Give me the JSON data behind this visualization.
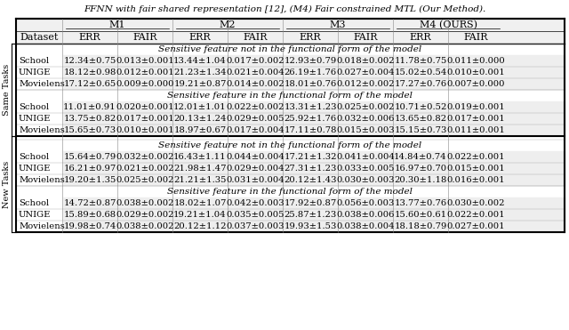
{
  "title": "FFNN with fair shared representation [12], (M4) Fair constrained MTL (Our Method).",
  "col_headers_level1": [
    "",
    "M1",
    "",
    "M2",
    "",
    "M3",
    "",
    "M4 (OURS)",
    ""
  ],
  "col_headers_level2": [
    "Dataset",
    "ERR",
    "FAIR",
    "ERR",
    "FAIR",
    "ERR",
    "FAIR",
    "ERR",
    "FAIR"
  ],
  "row_group1_label": "Same Tasks",
  "row_group1_section1_header": "Sensitive feature not in the functional form of the model",
  "row_group1_section1": [
    [
      "School",
      "12.34±0.75",
      "0.013±0.001",
      "13.44±1.04",
      "0.017±0.002",
      "12.93±0.79",
      "0.018±0.002",
      "11.78±0.75",
      "0.011±0.000"
    ],
    [
      "UNIGE",
      "18.12±0.98",
      "0.012±0.001",
      "21.23±1.34",
      "0.021±0.004",
      "26.19±1.76",
      "0.027±0.004",
      "15.02±0.54",
      "0.010±0.001"
    ],
    [
      "Movielens",
      "17.12±0.65",
      "0.009±0.000",
      "19.21±0.87",
      "0.014±0.002",
      "18.01±0.76",
      "0.012±0.002",
      "17.27±0.76",
      "0.007±0.000"
    ]
  ],
  "row_group1_section2_header": "Sensitive feature in the functional form of the model",
  "row_group1_section2": [
    [
      "School",
      "11.01±0.91",
      "0.020±0.001",
      "12.01±1.01",
      "0.022±0.002",
      "13.31±1.23",
      "0.025±0.002",
      "10.71±0.52",
      "0.019±0.001"
    ],
    [
      "UNIGE",
      "13.75±0.82",
      "0.017±0.001",
      "20.13±1.24",
      "0.029±0.005",
      "25.92±1.76",
      "0.032±0.006",
      "13.65±0.82",
      "0.017±0.001"
    ],
    [
      "Movielens",
      "15.65±0.73",
      "0.010±0.001",
      "18.97±0.67",
      "0.017±0.004",
      "17.11±0.78",
      "0.015±0.003",
      "15.15±0.73",
      "0.011±0.001"
    ]
  ],
  "row_group2_label": "New Tasks",
  "row_group2_section1_header": "Sensitive feature not in the functional form of the model",
  "row_group2_section1": [
    [
      "School",
      "15.64±0.79",
      "0.032±0.002",
      "16.43±1.11",
      "0.044±0.004",
      "17.21±1.32",
      "0.041±0.004",
      "14.84±0.74",
      "0.022±0.001"
    ],
    [
      "UNIGE",
      "16.21±0.97",
      "0.021±0.002",
      "21.98±1.47",
      "0.029±0.004",
      "27.31±1.23",
      "0.033±0.005",
      "16.97±0.70",
      "0.015±0.001"
    ],
    [
      "Movielens",
      "19.20±1.35",
      "0.025±0.002",
      "21.21±1.35",
      "0.031±0.004",
      "20.12±1.43",
      "0.030±0.003",
      "20.30±1.18",
      "0.016±0.001"
    ]
  ],
  "row_group2_section2_header": "Sensitive feature in the functional form of the model",
  "row_group2_section2": [
    [
      "School",
      "14.72±0.87",
      "0.038±0.002",
      "18.02±1.07",
      "0.042±0.003",
      "17.92±0.87",
      "0.056±0.003",
      "13.77±0.76",
      "0.030±0.002"
    ],
    [
      "UNIGE",
      "15.89±0.68",
      "0.029±0.002",
      "19.21±1.04",
      "0.035±0.005",
      "25.87±1.23",
      "0.038±0.006",
      "15.60±0.61",
      "0.022±0.001"
    ],
    [
      "Movielens",
      "19.98±0.74",
      "0.038±0.002",
      "20.12±1.12",
      "0.037±0.003",
      "19.93±1.53",
      "0.038±0.004",
      "18.18±0.79",
      "0.027±0.001"
    ]
  ],
  "bg_header": "#d0d0d0",
  "bg_section_header": "#f0f0f0",
  "bg_data_odd": "#e8e8e8",
  "bg_data_even": "#ffffff",
  "border_color": "#000000",
  "font_size_title": 7.5,
  "font_size_header": 8,
  "font_size_data": 7.2,
  "font_size_section": 7.5,
  "font_size_group": 8
}
